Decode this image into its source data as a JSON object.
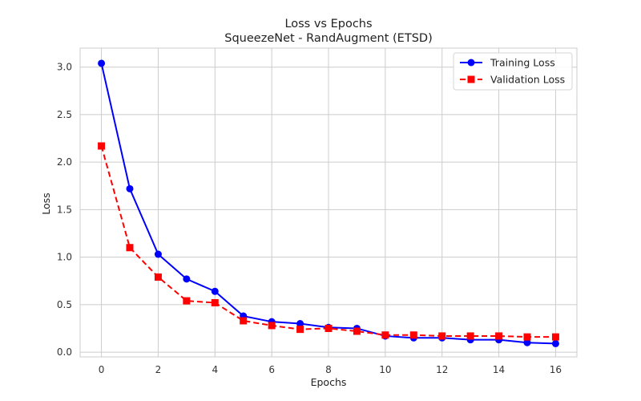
{
  "chart_data": {
    "type": "line",
    "title": "Loss vs Epochs",
    "subtitle": "SqueezeNet - RandAugment (ETSD)",
    "xlabel": "Epochs",
    "ylabel": "Loss",
    "x": [
      0,
      1,
      2,
      3,
      4,
      5,
      6,
      7,
      8,
      9,
      10,
      11,
      12,
      13,
      14,
      15,
      16
    ],
    "xlim": [
      -0.75,
      16.75
    ],
    "ylim": [
      -0.05,
      3.2
    ],
    "xticks": [
      0,
      2,
      4,
      6,
      8,
      10,
      12,
      14,
      16
    ],
    "yticks": [
      0.0,
      0.5,
      1.0,
      1.5,
      2.0,
      2.5,
      3.0
    ],
    "xtick_labels": [
      "0",
      "2",
      "4",
      "6",
      "8",
      "10",
      "12",
      "14",
      "16"
    ],
    "ytick_labels": [
      "0.0",
      "0.5",
      "1.0",
      "1.5",
      "2.0",
      "2.5",
      "3.0"
    ],
    "grid": true,
    "legend_position": "top-right",
    "series": [
      {
        "name": "Training Loss",
        "color": "#0000ff",
        "marker": "circle",
        "line_style": "solid",
        "values": [
          3.04,
          1.72,
          1.03,
          0.77,
          0.64,
          0.38,
          0.32,
          0.3,
          0.26,
          0.25,
          0.17,
          0.15,
          0.15,
          0.13,
          0.13,
          0.1,
          0.09
        ]
      },
      {
        "name": "Validation Loss",
        "color": "#ff0000",
        "marker": "square",
        "line_style": "dashed",
        "values": [
          2.17,
          1.1,
          0.79,
          0.54,
          0.52,
          0.33,
          0.28,
          0.24,
          0.25,
          0.22,
          0.18,
          0.18,
          0.17,
          0.17,
          0.17,
          0.16,
          0.16
        ]
      }
    ]
  }
}
